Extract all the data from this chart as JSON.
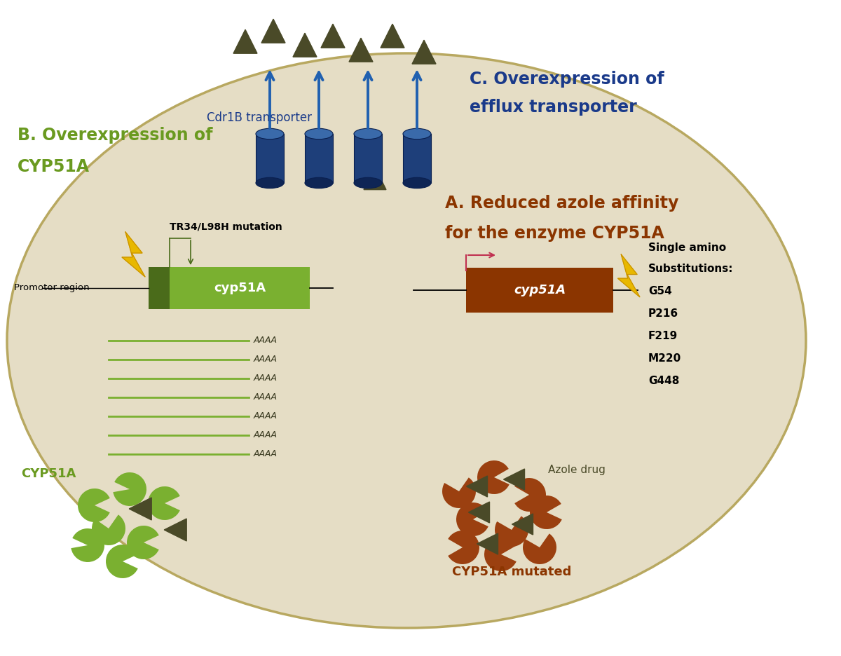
{
  "bg_color": "#f0ead6",
  "white_bg": "#ffffff",
  "cell_fill": "#e5ddc5",
  "cell_edge": "#c8b870",
  "green_dark": "#4a6b1a",
  "green_light": "#7ab030",
  "brown_dark": "#8b3500",
  "brown_color": "#9b4010",
  "dark_olive": "#4a4a28",
  "blue_transporter": "#1e3f7a",
  "arrow_blue": "#2060b0",
  "yellow_lightning": "#e8b800",
  "yellow_dark": "#c89000",
  "red_arrow": "#c03050",
  "text_green": "#6a9a20",
  "text_brown": "#8b3500",
  "text_blue": "#1a3a8a",
  "text_dark": "#3a3a20",
  "title_A_line1": "A. Reduced azole affinity",
  "title_A_line2": "for the enzyme CYP51A",
  "title_B_line1": "B. Overexpression of",
  "title_B_line2": "CYP51A",
  "title_C_line1": "C. Overexpression of",
  "title_C_line2": "efflux transporter",
  "label_cdr1b": "Cdr1B transporter",
  "label_promotor": "Promotor region",
  "label_mutation": "TR34/L98H mutation",
  "label_cyp51A_green": "cyp51A",
  "label_cyp51A_brown": "cyp51A",
  "label_CYP51A_green": "CYP51A",
  "label_CYP51A_mutated": "CYP51A mutated",
  "label_azole": "Azole drug",
  "single_amino_line1": "Single amino",
  "single_amino_line2": "Substitutions:",
  "substitutions": [
    "G54",
    "P216",
    "F219",
    "M220",
    "G448"
  ],
  "mrna_label": "AAAA"
}
